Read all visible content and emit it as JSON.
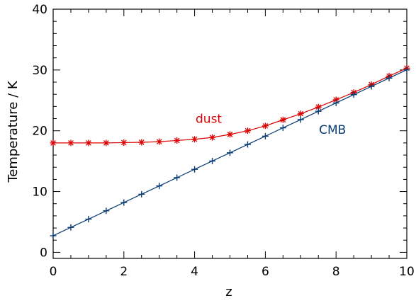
{
  "chart_data": {
    "type": "line",
    "xlabel": "z",
    "ylabel": "Temperature / K",
    "xlim": [
      0,
      10
    ],
    "ylim": [
      -1,
      40
    ],
    "x_ticks": [
      0,
      2,
      4,
      6,
      8,
      10
    ],
    "y_ticks": [
      0,
      10,
      20,
      30,
      40
    ],
    "x_minor_step": 0.5,
    "y_minor_step": 2,
    "grid": false,
    "legend": "none",
    "series": [
      {
        "name": "dust",
        "color": "#dd0000",
        "marker": "asterisk",
        "x": [
          0,
          0.5,
          1,
          1.5,
          2,
          2.5,
          3,
          3.5,
          4,
          4.5,
          5,
          5.5,
          6,
          6.5,
          7,
          7.5,
          8,
          8.5,
          9,
          9.5,
          10
        ],
        "values": [
          18.0,
          18.0,
          18.0,
          18.0,
          18.05,
          18.1,
          18.2,
          18.4,
          18.6,
          18.9,
          19.4,
          20.0,
          20.8,
          21.8,
          22.8,
          23.9,
          25.1,
          26.3,
          27.6,
          29.0,
          30.3
        ]
      },
      {
        "name": "CMB",
        "color": "#0a3d73",
        "marker": "plus",
        "x": [
          0,
          0.5,
          1,
          1.5,
          2,
          2.5,
          3,
          3.5,
          4,
          4.5,
          5,
          5.5,
          6,
          6.5,
          7,
          7.5,
          8,
          8.5,
          9,
          9.5,
          10
        ],
        "values": [
          2.73,
          4.1,
          5.46,
          6.83,
          8.19,
          9.56,
          10.92,
          12.29,
          13.65,
          15.02,
          16.38,
          17.75,
          19.11,
          20.48,
          21.84,
          23.21,
          24.57,
          25.94,
          27.3,
          28.67,
          30.03
        ]
      }
    ],
    "annotations": [
      {
        "text": "dust",
        "x": 4.4,
        "y": 21.3,
        "color": "#dd0000"
      },
      {
        "text": "CMB",
        "x": 7.9,
        "y": 19.5,
        "color": "#0a3d73"
      }
    ]
  }
}
